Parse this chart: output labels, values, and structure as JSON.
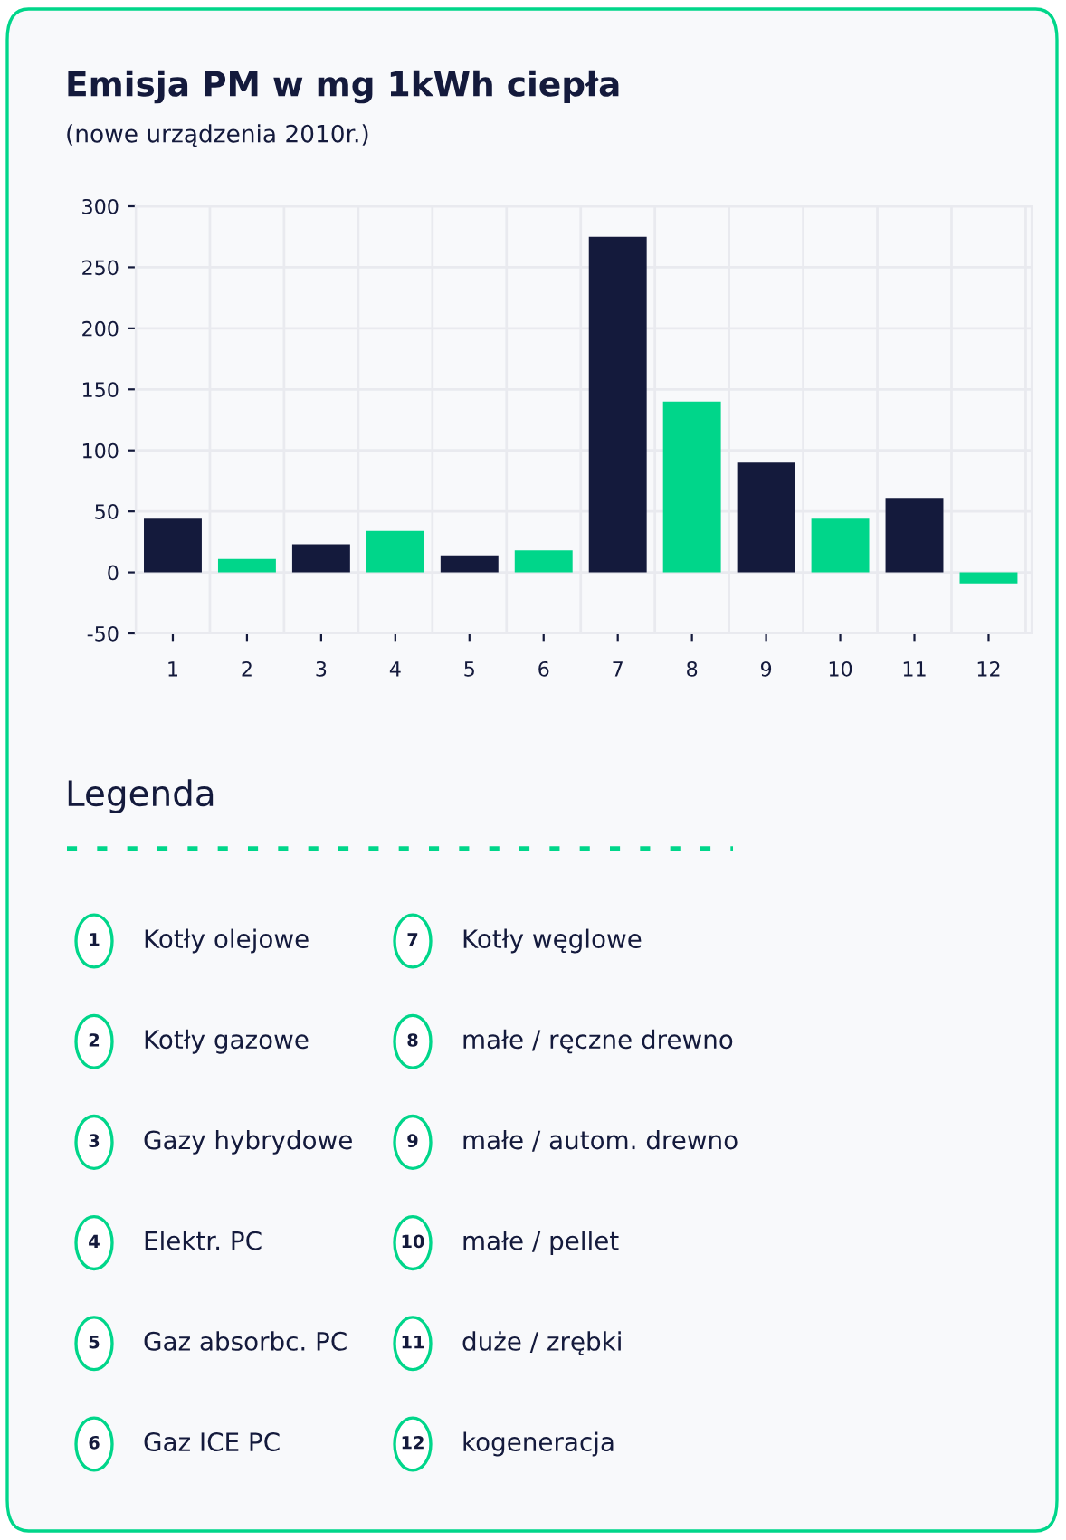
{
  "chart_data": {
    "type": "bar",
    "title": "Emisja PM w mg 1kWh ciepła",
    "subtitle": "(nowe urządzenia 2010r.)",
    "categories": [
      "1",
      "2",
      "3",
      "4",
      "5",
      "6",
      "7",
      "8",
      "9",
      "10",
      "11",
      "12"
    ],
    "values": [
      44,
      11,
      23,
      34,
      14,
      18,
      275,
      140,
      90,
      44,
      61,
      -9
    ],
    "colors": [
      "#141a3c",
      "#00d68a",
      "#141a3c",
      "#00d68a",
      "#141a3c",
      "#00d68a",
      "#141a3c",
      "#00d68a",
      "#141a3c",
      "#00d68a",
      "#141a3c",
      "#00d68a"
    ],
    "ylim": [
      -50,
      300
    ],
    "yticks": [
      -50,
      0,
      50,
      100,
      150,
      200,
      250,
      300
    ],
    "grid": true,
    "annotations": [
      "Legenda",
      "Kotły olejowe",
      "Kotły gazowe",
      "Gazy hybrydowe",
      "Elektr. PC",
      "Gaz absorbc. PC",
      "Gaz ICE PC",
      "Kotły węglowe",
      "małe / ręczne drewno",
      "małe / autom. drewno",
      "małe / pellet",
      "duże / zrębki",
      "kogeneracja"
    ]
  }
}
